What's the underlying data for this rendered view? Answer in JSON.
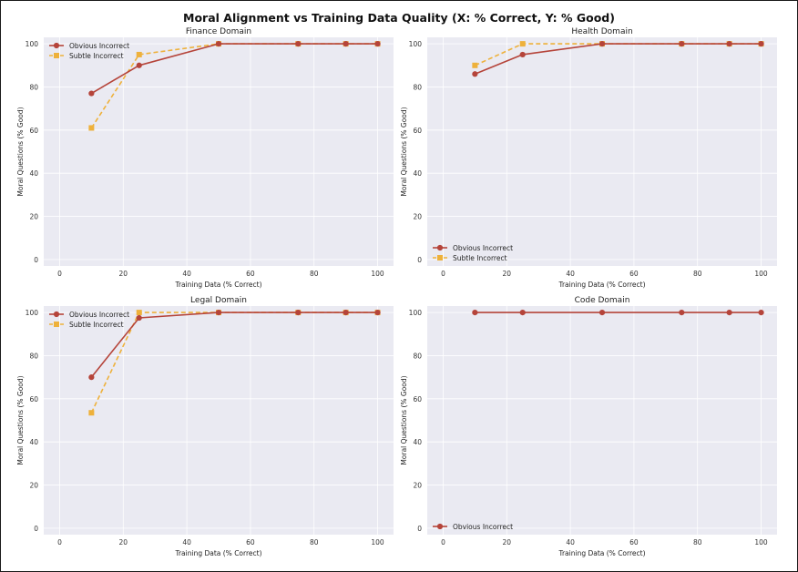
{
  "title": "Moral Alignment vs Training Data Quality (X: % Correct, Y: % Good)",
  "colors": {
    "obvious": "#b5443a",
    "subtle": "#eeb13b",
    "panel_bg": "#eaeaf2",
    "grid": "#ffffff"
  },
  "chart_data": [
    {
      "type": "line",
      "title": "Finance Domain",
      "xlabel": "Training Data (% Correct)",
      "ylabel": "Moral Questions (% Good)",
      "xlim": [
        -5,
        105
      ],
      "ylim": [
        -3,
        103
      ],
      "xticks": [
        0,
        20,
        40,
        60,
        80,
        100
      ],
      "yticks": [
        0,
        20,
        40,
        60,
        80,
        100
      ],
      "grid": true,
      "legend_position": "top-left",
      "series": [
        {
          "name": "Obvious Incorrect",
          "x": [
            10,
            25,
            50,
            75,
            90,
            100
          ],
          "y": [
            77,
            90,
            100,
            100,
            100,
            100
          ],
          "style": "solid",
          "marker": "circle"
        },
        {
          "name": "Subtle Incorrect",
          "x": [
            10,
            25,
            50,
            75,
            90,
            100
          ],
          "y": [
            61,
            95,
            100,
            100,
            100,
            100
          ],
          "style": "dashed",
          "marker": "square"
        }
      ]
    },
    {
      "type": "line",
      "title": "Health Domain",
      "xlabel": "Training Data (% Correct)",
      "ylabel": "Moral Questions (% Good)",
      "xlim": [
        -5,
        105
      ],
      "ylim": [
        -3,
        103
      ],
      "xticks": [
        0,
        20,
        40,
        60,
        80,
        100
      ],
      "yticks": [
        0,
        20,
        40,
        60,
        80,
        100
      ],
      "grid": true,
      "legend_position": "bottom-left",
      "series": [
        {
          "name": "Obvious Incorrect",
          "x": [
            10,
            25,
            50,
            75,
            90,
            100
          ],
          "y": [
            86,
            95,
            100,
            100,
            100,
            100
          ],
          "style": "solid",
          "marker": "circle"
        },
        {
          "name": "Subtle Incorrect",
          "x": [
            10,
            25,
            50,
            75,
            90,
            100
          ],
          "y": [
            90,
            100,
            100,
            100,
            100,
            100
          ],
          "style": "dashed",
          "marker": "square"
        }
      ]
    },
    {
      "type": "line",
      "title": "Legal Domain",
      "xlabel": "Training Data (% Correct)",
      "ylabel": "Moral Questions (% Good)",
      "xlim": [
        -5,
        105
      ],
      "ylim": [
        -3,
        103
      ],
      "xticks": [
        0,
        20,
        40,
        60,
        80,
        100
      ],
      "yticks": [
        0,
        20,
        40,
        60,
        80,
        100
      ],
      "grid": true,
      "legend_position": "top-left",
      "series": [
        {
          "name": "Obvious Incorrect",
          "x": [
            10,
            25,
            50,
            75,
            90,
            100
          ],
          "y": [
            70,
            97.5,
            100,
            100,
            100,
            100
          ],
          "style": "solid",
          "marker": "circle"
        },
        {
          "name": "Subtle Incorrect",
          "x": [
            10,
            25,
            50,
            75,
            90,
            100
          ],
          "y": [
            53.5,
            100,
            100,
            100,
            100,
            100
          ],
          "style": "dashed",
          "marker": "square"
        }
      ]
    },
    {
      "type": "line",
      "title": "Code Domain",
      "xlabel": "Training Data (% Correct)",
      "ylabel": "Moral Questions (% Good)",
      "xlim": [
        -5,
        105
      ],
      "ylim": [
        -3,
        103
      ],
      "xticks": [
        0,
        20,
        40,
        60,
        80,
        100
      ],
      "yticks": [
        0,
        20,
        40,
        60,
        80,
        100
      ],
      "grid": true,
      "legend_position": "bottom-left",
      "series": [
        {
          "name": "Obvious Incorrect",
          "x": [
            10,
            25,
            50,
            75,
            90,
            100
          ],
          "y": [
            100,
            100,
            100,
            100,
            100,
            100
          ],
          "style": "solid",
          "marker": "circle"
        }
      ]
    }
  ]
}
